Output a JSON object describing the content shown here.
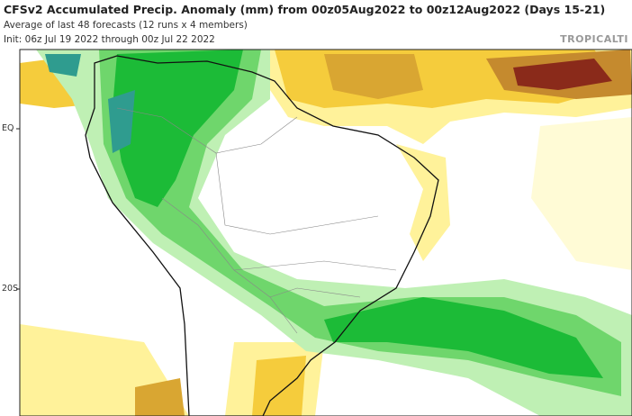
{
  "header": {
    "title": "CFSv2 Accumulated Precip. Anomaly (mm) from 00z05Aug2022 to 00z12Aug2022 (Days 15-21)",
    "subtitle": "Average of last 48 forecasts (12 runs x 4 members)",
    "init": "Init: 06z Jul 19 2022 through 00z Jul 22 2022",
    "brand": "TROPICALTI"
  },
  "map": {
    "lat_labels": [
      "EQ",
      "20S"
    ]
  }
}
